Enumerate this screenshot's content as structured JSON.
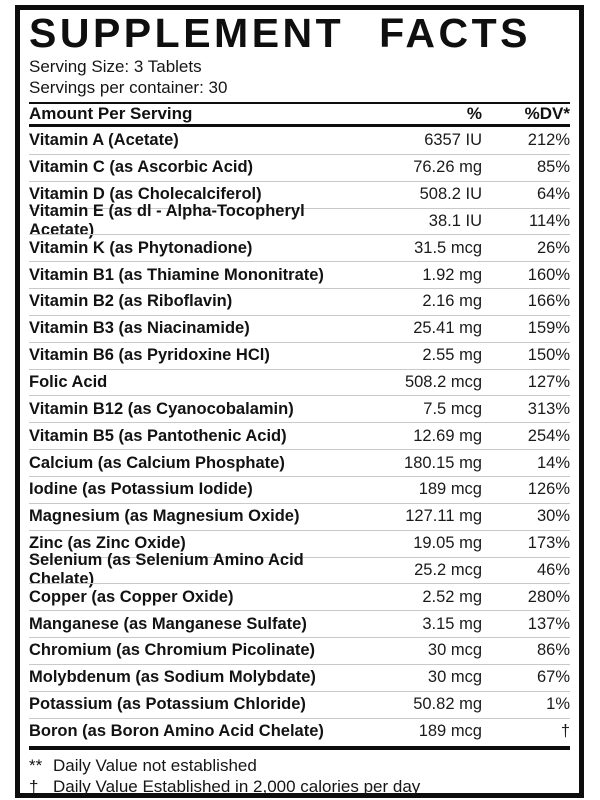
{
  "label": {
    "title": "SUPPLEMENT FACTS",
    "serving_size": "Serving Size: 3 Tablets",
    "servings_per_container": "Servings per container: 30"
  },
  "table": {
    "columns": [
      "Amount Per Serving",
      "%",
      "%DV*"
    ],
    "rows": [
      {
        "name": "Vitamin A (Acetate)",
        "amount": "6357 IU",
        "dv": "212%"
      },
      {
        "name": "Vitamin C (as Ascorbic Acid)",
        "amount": "76.26 mg",
        "dv": "85%"
      },
      {
        "name": "Vitamin D (as Cholecalciferol)",
        "amount": "508.2 IU",
        "dv": "64%"
      },
      {
        "name": "Vitamin E (as dl - Alpha-Tocopheryl Acetate)",
        "amount": "38.1 IU",
        "dv": "114%"
      },
      {
        "name": "Vitamin K (as Phytonadione)",
        "amount": "31.5 mcg",
        "dv": "26%"
      },
      {
        "name": "Vitamin B1 (as Thiamine Mononitrate)",
        "amount": "1.92 mg",
        "dv": "160%"
      },
      {
        "name": "Vitamin B2 (as Riboflavin)",
        "amount": "2.16 mg",
        "dv": "166%"
      },
      {
        "name": "Vitamin B3 (as Niacinamide)",
        "amount": "25.41 mg",
        "dv": "159%"
      },
      {
        "name": "Vitamin B6 (as Pyridoxine HCl)",
        "amount": "2.55 mg",
        "dv": "150%"
      },
      {
        "name": "Folic Acid",
        "amount": "508.2 mcg",
        "dv": "127%"
      },
      {
        "name": "Vitamin B12 (as Cyanocobalamin)",
        "amount": "7.5 mcg",
        "dv": "313%"
      },
      {
        "name": "Vitamin B5 (as Pantothenic Acid)",
        "amount": "12.69 mg",
        "dv": "254%"
      },
      {
        "name": "Calcium (as Calcium Phosphate)",
        "amount": "180.15 mg",
        "dv": "14%"
      },
      {
        "name": "Iodine (as Potassium Iodide)",
        "amount": "189 mcg",
        "dv": "126%"
      },
      {
        "name": "Magnesium (as Magnesium Oxide)",
        "amount": "127.11 mg",
        "dv": "30%"
      },
      {
        "name": "Zinc (as Zinc Oxide)",
        "amount": "19.05 mg",
        "dv": "173%"
      },
      {
        "name": "Selenium (as Selenium Amino Acid Chelate)",
        "amount": "25.2 mcg",
        "dv": "46%"
      },
      {
        "name": "Copper (as Copper Oxide)",
        "amount": "2.52 mg",
        "dv": "280%"
      },
      {
        "name": "Manganese (as Manganese Sulfate)",
        "amount": "3.15 mg",
        "dv": "137%"
      },
      {
        "name": "Chromium (as Chromium Picolinate)",
        "amount": "30 mcg",
        "dv": "86%"
      },
      {
        "name": "Molybdenum (as Sodium Molybdate)",
        "amount": "30 mcg",
        "dv": "67%"
      },
      {
        "name": "Potassium (as Potassium Chloride)",
        "amount": "50.82 mg",
        "dv": "1%"
      },
      {
        "name": "Boron (as Boron Amino Acid Chelate)",
        "amount": "189 mcg",
        "dv": "†"
      }
    ]
  },
  "footnotes": [
    {
      "symbol": "**",
      "text": "Daily Value not established"
    },
    {
      "symbol": "†",
      "text": "Daily Value Established in 2,000 calories per day"
    }
  ],
  "colors": {
    "border": "#0d0d0d",
    "separator": "#c9c9c9",
    "background": "#ffffff",
    "text": "#111111"
  }
}
